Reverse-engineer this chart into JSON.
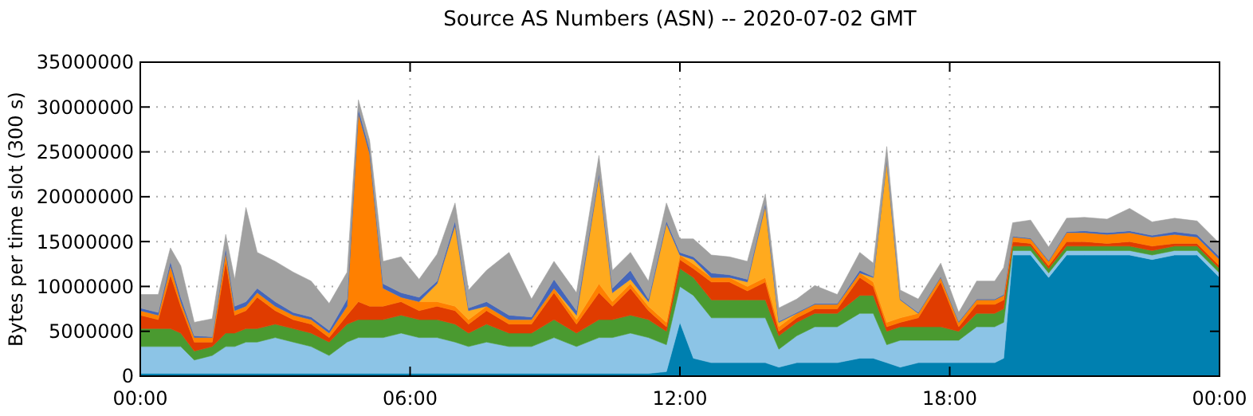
{
  "chart_data": {
    "type": "area",
    "stacked": true,
    "title": "Source AS Numbers (ASN) -- 2020-07-02 GMT",
    "ylabel": "Bytes per time slot (300 s)",
    "x": [
      0,
      0.4,
      0.67,
      0.9,
      1.2,
      1.6,
      1.9,
      2.1,
      2.35,
      2.6,
      3.0,
      3.4,
      3.8,
      4.2,
      4.6,
      4.85,
      5.1,
      5.4,
      5.8,
      6.2,
      6.6,
      7.0,
      7.3,
      7.7,
      8.2,
      8.7,
      9.2,
      9.7,
      10.2,
      10.5,
      10.9,
      11.3,
      11.7,
      12.0,
      12.3,
      12.7,
      13.1,
      13.5,
      13.9,
      14.2,
      14.6,
      15.0,
      15.5,
      16.0,
      16.3,
      16.6,
      16.9,
      17.3,
      17.8,
      18.2,
      18.6,
      19.0,
      19.2,
      19.4,
      19.8,
      20.2,
      20.6,
      21.0,
      21.5,
      22.0,
      22.5,
      23.0,
      23.5,
      24.0
    ],
    "xlim": [
      0,
      24
    ],
    "xticks": [
      {
        "value": 0,
        "label": "00:00"
      },
      {
        "value": 6,
        "label": "06:00"
      },
      {
        "value": 12,
        "label": "12:00"
      },
      {
        "value": 18,
        "label": "18:00"
      },
      {
        "value": 24,
        "label": "00:00"
      }
    ],
    "ylim": [
      0,
      35000000
    ],
    "yticks": [
      0,
      5000000,
      10000000,
      15000000,
      20000000,
      25000000,
      30000000,
      35000000
    ],
    "grid": true,
    "line_style": "dotted",
    "series": [
      {
        "color": "#0080b0",
        "values": [
          300000,
          300000,
          300000,
          300000,
          300000,
          300000,
          300000,
          300000,
          300000,
          300000,
          300000,
          300000,
          300000,
          300000,
          300000,
          300000,
          300000,
          300000,
          300000,
          300000,
          300000,
          300000,
          300000,
          300000,
          300000,
          300000,
          300000,
          300000,
          300000,
          300000,
          300000,
          300000,
          500000,
          6000000,
          2000000,
          1500000,
          1500000,
          1500000,
          1500000,
          1000000,
          1500000,
          1500000,
          1500000,
          2000000,
          2000000,
          1500000,
          1000000,
          1500000,
          1500000,
          1500000,
          1500000,
          1500000,
          2000000,
          13500000,
          13500000,
          11000000,
          13500000,
          13500000,
          13500000,
          13500000,
          13000000,
          13500000,
          13500000,
          11000000
        ]
      },
      {
        "color": "#8cc4e6",
        "values": [
          3000000,
          3000000,
          3000000,
          3000000,
          1500000,
          2000000,
          3000000,
          3000000,
          3500000,
          3500000,
          4000000,
          3500000,
          3000000,
          2000000,
          3500000,
          4000000,
          4000000,
          4000000,
          4500000,
          4000000,
          4000000,
          3500000,
          3000000,
          3500000,
          3000000,
          3000000,
          4000000,
          3000000,
          4000000,
          4000000,
          4500000,
          4000000,
          3000000,
          4000000,
          7000000,
          5000000,
          5000000,
          5000000,
          5000000,
          2000000,
          3000000,
          4000000,
          4000000,
          5000000,
          5000000,
          2000000,
          3000000,
          2500000,
          2500000,
          2500000,
          4000000,
          4000000,
          4000000,
          500000,
          500000,
          500000,
          500000,
          500000,
          500000,
          500000,
          500000,
          500000,
          500000,
          500000
        ]
      },
      {
        "color": "#4a9a30",
        "values": [
          2000000,
          2000000,
          2000000,
          1500000,
          1000000,
          1000000,
          1500000,
          1500000,
          1500000,
          1500000,
          1500000,
          1500000,
          1500000,
          1500000,
          2000000,
          2000000,
          2000000,
          2000000,
          2000000,
          2000000,
          2000000,
          2000000,
          1500000,
          2000000,
          1500000,
          1500000,
          2000000,
          1500000,
          2000000,
          2000000,
          2000000,
          2000000,
          1500000,
          2000000,
          2000000,
          2000000,
          2000000,
          2000000,
          2000000,
          1500000,
          1500000,
          1500000,
          1500000,
          2000000,
          2000000,
          1500000,
          1500000,
          1500000,
          1500000,
          1000000,
          1500000,
          1500000,
          1500000,
          500000,
          500000,
          500000,
          500000,
          500000,
          500000,
          500000,
          500000,
          500000,
          500000,
          500000
        ]
      },
      {
        "color": "#e03c00",
        "values": [
          1500000,
          1000000,
          6000000,
          3000000,
          1000000,
          500000,
          8000000,
          2000000,
          2000000,
          3500000,
          1500000,
          1000000,
          1000000,
          500000,
          1000000,
          2000000,
          1500000,
          1500000,
          1500000,
          1000000,
          1500000,
          1500000,
          1000000,
          1500000,
          1000000,
          1000000,
          3000000,
          1000000,
          3000000,
          1500000,
          3000000,
          1000000,
          500000,
          1000000,
          1000000,
          2000000,
          2000000,
          1000000,
          2000000,
          500000,
          500000,
          500000,
          500000,
          2000000,
          1000000,
          500000,
          500000,
          1000000,
          5000000,
          500000,
          1000000,
          1000000,
          1000000,
          500000,
          300000,
          300000,
          500000,
          500000,
          300000,
          500000,
          500000,
          300000,
          300000,
          300000
        ]
      },
      {
        "color": "#ff8000",
        "values": [
          500000,
          500000,
          1000000,
          500000,
          500000,
          500000,
          1000000,
          500000,
          500000,
          500000,
          500000,
          500000,
          500000,
          500000,
          1000000,
          21000000,
          17000000,
          2000000,
          500000,
          1000000,
          500000,
          500000,
          500000,
          500000,
          500000,
          500000,
          500000,
          500000,
          1000000,
          500000,
          500000,
          500000,
          500000,
          500000,
          500000,
          500000,
          500000,
          500000,
          500000,
          500000,
          500000,
          500000,
          500000,
          500000,
          500000,
          500000,
          500000,
          500000,
          500000,
          500000,
          500000,
          500000,
          500000,
          500000,
          500000,
          500000,
          1000000,
          1000000,
          1000000,
          1000000,
          1000000,
          1000000,
          700000,
          700000
        ]
      },
      {
        "color": "#ffaa1e",
        "values": [
          0,
          0,
          0,
          0,
          0,
          0,
          0,
          0,
          0,
          0,
          0,
          0,
          0,
          0,
          0,
          0,
          0,
          0,
          0,
          0,
          2000000,
          9000000,
          1000000,
          0,
          0,
          0,
          0,
          500000,
          12000000,
          1000000,
          500000,
          500000,
          11000000,
          0,
          500000,
          0,
          0,
          500000,
          8000000,
          500000,
          0,
          0,
          0,
          0,
          500000,
          18000000,
          2000000,
          0,
          0,
          0,
          0,
          0,
          0,
          0,
          0,
          0,
          0,
          0,
          0,
          0,
          0,
          0,
          0,
          0
        ]
      },
      {
        "color": "#4466bb",
        "values": [
          300000,
          300000,
          500000,
          500000,
          200000,
          100000,
          500000,
          500000,
          500000,
          500000,
          500000,
          300000,
          300000,
          300000,
          800000,
          500000,
          500000,
          500000,
          500000,
          500000,
          300000,
          500000,
          300000,
          500000,
          500000,
          300000,
          1000000,
          500000,
          300000,
          500000,
          1000000,
          300000,
          300000,
          300000,
          300000,
          500000,
          300000,
          300000,
          300000,
          100000,
          100000,
          100000,
          100000,
          300000,
          100000,
          100000,
          100000,
          100000,
          100000,
          100000,
          100000,
          100000,
          100000,
          100000,
          100000,
          100000,
          100000,
          200000,
          200000,
          200000,
          200000,
          300000,
          300000,
          300000
        ]
      },
      {
        "color": "#a0a0a0",
        "values": [
          1500000,
          2000000,
          1500000,
          3500000,
          1500000,
          2000000,
          1500000,
          3000000,
          10500000,
          4000000,
          4500000,
          4500000,
          4000000,
          3000000,
          3000000,
          1000000,
          1000000,
          2500000,
          4000000,
          2000000,
          3000000,
          2000000,
          2000000,
          3500000,
          7000000,
          2000000,
          2000000,
          2000000,
          2000000,
          2000000,
          2000000,
          2000000,
          2000000,
          1500000,
          2000000,
          2000000,
          2000000,
          2000000,
          1000000,
          1500000,
          1500000,
          2000000,
          1000000,
          2000000,
          1500000,
          1500000,
          1000000,
          1500000,
          1500000,
          1000000,
          2000000,
          2000000,
          3000000,
          1500000,
          2000000,
          1500000,
          1500000,
          1500000,
          1500000,
          2500000,
          1500000,
          1500000,
          1500000,
          1500000
        ]
      }
    ]
  }
}
